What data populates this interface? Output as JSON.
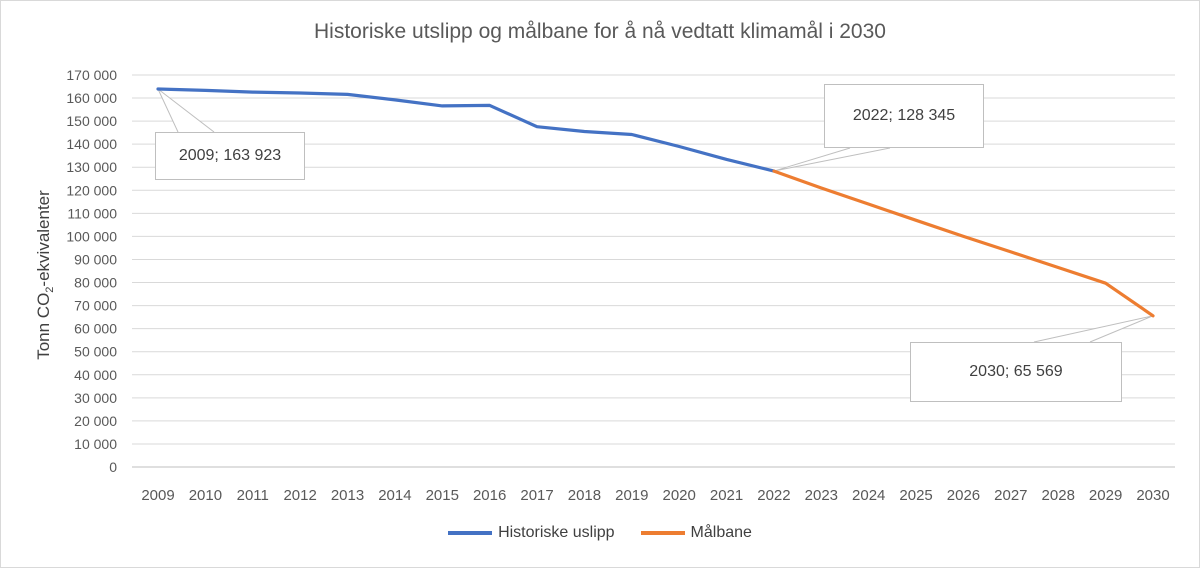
{
  "chart_data": {
    "type": "line",
    "title": "Historiske utslipp og målbane for å nå vedtatt klimamål i 2030",
    "ylabel_prefix": "Tonn CO",
    "ylabel_sub": "2",
    "ylabel_suffix": "-ekvivalenter",
    "xlabel": "",
    "ylim": [
      0,
      170000
    ],
    "ytick_labels": [
      "0",
      "10 000",
      "20 000",
      "30 000",
      "40 000",
      "50 000",
      "60 000",
      "70 000",
      "80 000",
      "90 000",
      "100 000",
      "110 000",
      "120 000",
      "130 000",
      "140 000",
      "150 000",
      "160 000",
      "170 000"
    ],
    "categories": [
      "2009",
      "2010",
      "2011",
      "2012",
      "2013",
      "2014",
      "2015",
      "2016",
      "2017",
      "2018",
      "2019",
      "2020",
      "2021",
      "2022",
      "2023",
      "2024",
      "2025",
      "2026",
      "2027",
      "2028",
      "2029",
      "2030"
    ],
    "grid": true,
    "legend_position": "bottom",
    "series": [
      {
        "name": "Historiske uslipp",
        "color": "#4472c4",
        "points": [
          [
            2009,
            163923
          ],
          [
            2010,
            163300
          ],
          [
            2011,
            162600
          ],
          [
            2012,
            162200
          ],
          [
            2013,
            161600
          ],
          [
            2014,
            159200
          ],
          [
            2015,
            156600
          ],
          [
            2016,
            156800
          ],
          [
            2017,
            147600
          ],
          [
            2018,
            145500
          ],
          [
            2019,
            144200
          ],
          [
            2020,
            139000
          ],
          [
            2021,
            133400
          ],
          [
            2022,
            128345
          ]
        ]
      },
      {
        "name": "Målbane",
        "color": "#ed7d31",
        "points": [
          [
            2022,
            128345
          ],
          [
            2023,
            121000
          ],
          [
            2024,
            114000
          ],
          [
            2025,
            107000
          ],
          [
            2026,
            100000
          ],
          [
            2027,
            93300
          ],
          [
            2028,
            86500
          ],
          [
            2029,
            79700
          ],
          [
            2030,
            65569
          ]
        ]
      }
    ],
    "annotations": [
      {
        "label": "2009; 163 923",
        "x": 2009,
        "y": 163923
      },
      {
        "label": "2022; 128 345",
        "x": 2022,
        "y": 128345
      },
      {
        "label": "2030; 65 569",
        "x": 2030,
        "y": 65569
      }
    ]
  }
}
